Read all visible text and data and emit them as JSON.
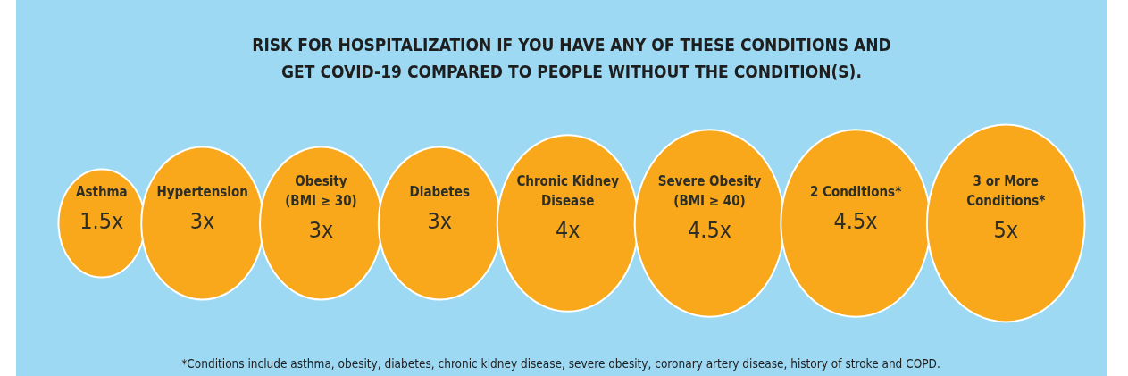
{
  "chart_data": {
    "type": "other",
    "title": "RISK FOR HOSPITALIZATION IF YOU HAVE ANY OF THESE CONDITIONS AND\nGET COVID-19 COMPARED TO PEOPLE WITHOUT THE CONDITION(S).",
    "categories": [
      "Asthma",
      "Hypertension",
      "Obesity\n(BMI ≥ 30)",
      "Diabetes",
      "Chronic Kidney\nDisease",
      "Severe Obesity\n(BMI ≥ 40)",
      "2 Conditions*",
      "3 or More\nConditions*"
    ],
    "values": [
      1.5,
      3,
      3,
      3,
      4,
      4.5,
      4.5,
      5
    ],
    "value_labels": [
      "1.5x",
      "3x",
      "3x",
      "3x",
      "4x",
      "4.5x",
      "4.5x",
      "5x"
    ],
    "color": "#f9a81c",
    "annotations": [
      "*Conditions include asthma, obesity, diabetes, chronic kidney disease, severe obesity, coronary artery disease, history of stroke and COPD."
    ]
  }
}
